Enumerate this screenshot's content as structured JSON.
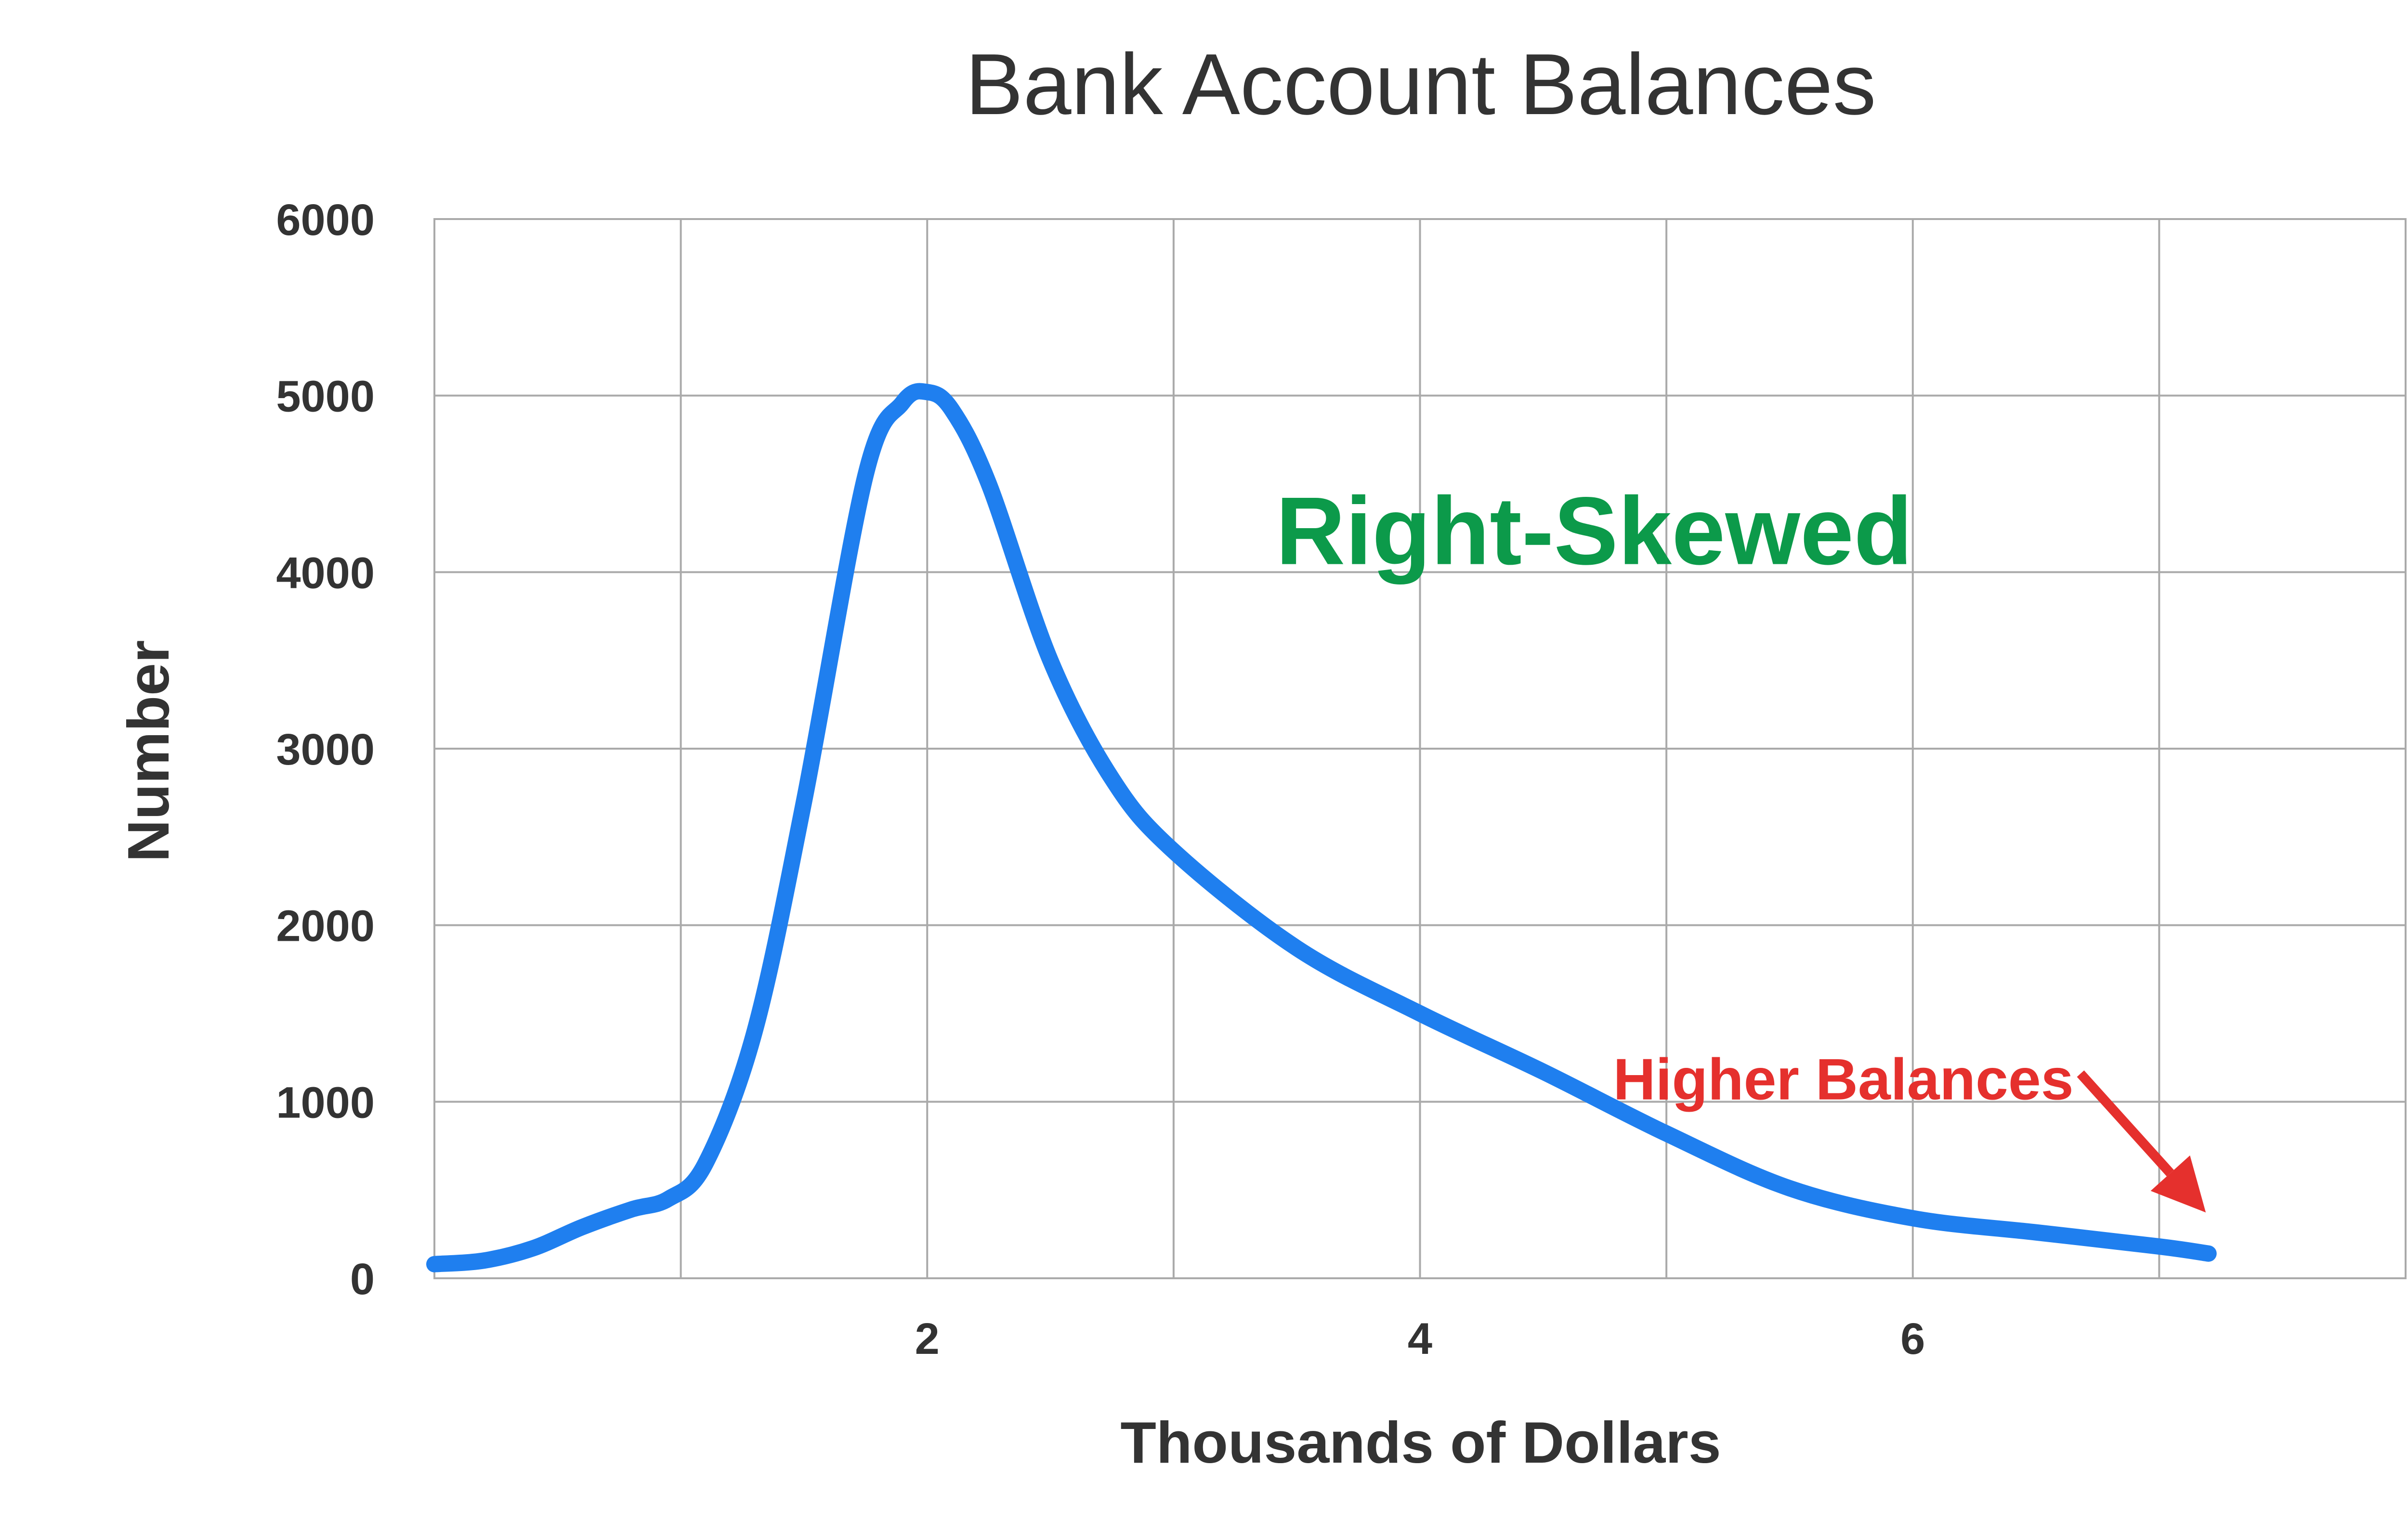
{
  "colors": {
    "series": "#1f7fef",
    "skew_annotation": "#0c9a4a",
    "higher_annotation": "#e5302d",
    "text": "#333333",
    "grid": "#aaaaaa"
  },
  "chart_data": {
    "type": "line",
    "title": "Bank Account Balances",
    "xlabel": "Thousands of Dollars",
    "ylabel": "Number",
    "xlim": [
      0,
      8
    ],
    "ylim": [
      0,
      6000
    ],
    "x_ticks": [
      2,
      4,
      6
    ],
    "x_tick_labels": [
      "2",
      "4",
      "6"
    ],
    "x_grid": [
      1,
      2,
      3,
      4,
      5,
      6,
      7,
      8
    ],
    "y_ticks": [
      0,
      1000,
      2000,
      3000,
      4000,
      5000,
      6000
    ],
    "y_tick_labels": [
      "0",
      "1000",
      "2000",
      "3000",
      "4000",
      "5000",
      "6000"
    ],
    "grid": true,
    "legend": "none",
    "series": [
      {
        "x": [
          0.0,
          0.2,
          0.4,
          0.6,
          0.8,
          0.95,
          1.1,
          1.3,
          1.5,
          1.75,
          1.9,
          2.0,
          2.1,
          2.25,
          2.5,
          2.75,
          3.0,
          3.5,
          4.0,
          4.5,
          5.0,
          5.5,
          6.0,
          6.5,
          7.0,
          7.2
        ],
        "y": [
          80,
          100,
          170,
          290,
          390,
          450,
          650,
          1400,
          2700,
          4550,
          4960,
          5020,
          4920,
          4500,
          3500,
          2830,
          2420,
          1870,
          1500,
          1170,
          820,
          510,
          340,
          260,
          180,
          140
        ]
      }
    ],
    "annotations": [
      {
        "id": "skew",
        "text": "Right-Skewed",
        "x": 5.0,
        "y": 4400
      },
      {
        "id": "higher",
        "text": "Higher Balances",
        "x": 6.5,
        "y": 1450,
        "arrow_to": [
          7.15,
          400
        ]
      }
    ]
  }
}
